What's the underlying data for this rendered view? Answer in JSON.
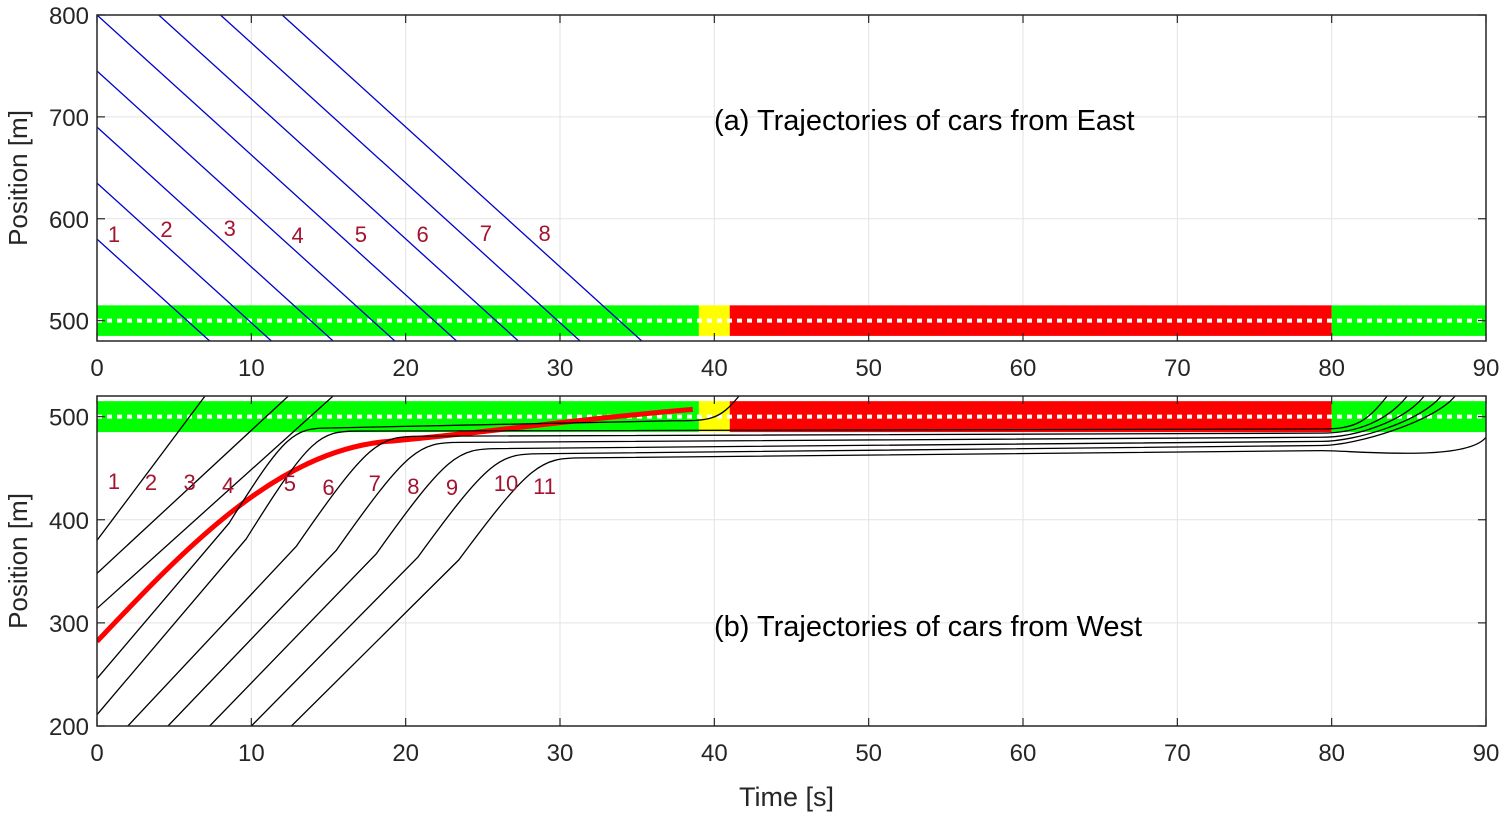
{
  "chart_data": [
    {
      "type": "line",
      "title": "(a) Trajectories of cars from East",
      "xlabel": "",
      "ylabel": "Position [m]",
      "xlim": [
        0,
        90
      ],
      "ylim": [
        480,
        800
      ],
      "xticks": [
        0,
        10,
        20,
        30,
        40,
        50,
        60,
        70,
        80,
        90
      ],
      "yticks": [
        500,
        600,
        700,
        800
      ],
      "grid": true,
      "signal_phases": [
        {
          "state": "green",
          "start": 0,
          "end": 39,
          "color": "#00ff00"
        },
        {
          "state": "yellow",
          "start": 39,
          "end": 41,
          "color": "#ffff00"
        },
        {
          "state": "red",
          "start": 41,
          "end": 80,
          "color": "#ff0000"
        },
        {
          "state": "green",
          "start": 80,
          "end": 90,
          "color": "#00ff00"
        }
      ],
      "signal_band": {
        "y_low": 485,
        "y_high": 515,
        "stop_line": 500
      },
      "line_color": "#0000cc",
      "series": [
        {
          "name": "trajectory-1",
          "x": [
            0,
            7.3
          ],
          "y": [
            580,
            480
          ]
        },
        {
          "name": "trajectory-2",
          "x": [
            0,
            11.3
          ],
          "y": [
            635,
            480
          ]
        },
        {
          "name": "trajectory-3",
          "x": [
            0,
            15.3
          ],
          "y": [
            690,
            480
          ]
        },
        {
          "name": "trajectory-4",
          "x": [
            0,
            19.3
          ],
          "y": [
            745,
            480
          ]
        },
        {
          "name": "trajectory-5",
          "x": [
            0,
            23.3
          ],
          "y": [
            800,
            480
          ]
        },
        {
          "name": "trajectory-6",
          "x": [
            4,
            27.3
          ],
          "y": [
            800,
            480
          ]
        },
        {
          "name": "trajectory-7",
          "x": [
            8,
            31.3
          ],
          "y": [
            800,
            480
          ]
        },
        {
          "name": "trajectory-8",
          "x": [
            12,
            35.3
          ],
          "y": [
            800,
            480
          ]
        }
      ],
      "annotations": [
        {
          "text": "1",
          "x": 1.1,
          "y": 577
        },
        {
          "text": "2",
          "x": 4.5,
          "y": 582
        },
        {
          "text": "3",
          "x": 8.6,
          "y": 583
        },
        {
          "text": "4",
          "x": 13.0,
          "y": 576
        },
        {
          "text": "5",
          "x": 17.1,
          "y": 577
        },
        {
          "text": "6",
          "x": 21.1,
          "y": 577
        },
        {
          "text": "7",
          "x": 25.2,
          "y": 578
        },
        {
          "text": "8",
          "x": 29.0,
          "y": 578
        }
      ]
    },
    {
      "type": "line",
      "title": "(b) Trajectories of cars from West",
      "xlabel": "Time [s]",
      "ylabel": "Position [m]",
      "xlim": [
        0,
        90
      ],
      "ylim": [
        200,
        520
      ],
      "xticks": [
        0,
        10,
        20,
        30,
        40,
        50,
        60,
        70,
        80,
        90
      ],
      "yticks": [
        200,
        300,
        400,
        500
      ],
      "grid": true,
      "signal_phases": [
        {
          "state": "green",
          "start": 0,
          "end": 39,
          "color": "#00ff00"
        },
        {
          "state": "yellow",
          "start": 39,
          "end": 41,
          "color": "#ffff00"
        },
        {
          "state": "red",
          "start": 41,
          "end": 80,
          "color": "#ff0000"
        },
        {
          "state": "green",
          "start": 80,
          "end": 90,
          "color": "#00ff00"
        }
      ],
      "signal_band": {
        "y_low": 485,
        "y_high": 515,
        "stop_line": 500
      },
      "line_color": "#000000",
      "series": [
        {
          "name": "trajectory-1",
          "x": [
            0,
            7.0
          ],
          "y": [
            380,
            520
          ]
        },
        {
          "name": "trajectory-2",
          "x": [
            0,
            12.4
          ],
          "y": [
            348,
            520
          ]
        },
        {
          "name": "trajectory-3",
          "x": [
            0,
            15.3
          ],
          "y": [
            314,
            520
          ]
        },
        {
          "name": "trajectory-4",
          "x": [
            0,
            38.6
          ],
          "y": [
            282,
            507
          ],
          "highlight": true,
          "color": "#ff0000"
        },
        {
          "name": "trajectory-5",
          "x": [
            0,
            13.8,
            38.0,
            41.6
          ],
          "y": [
            246,
            489,
            496,
            520
          ]
        },
        {
          "name": "trajectory-6",
          "x": [
            0,
            15.6,
            80.0,
            83.6
          ],
          "y": [
            211,
            486,
            488,
            520
          ]
        },
        {
          "name": "trajectory-7",
          "x": [
            2.0,
            19.6,
            80.0,
            84.9
          ],
          "y": [
            200,
            481,
            484,
            520
          ]
        },
        {
          "name": "trajectory-8",
          "x": [
            4.6,
            22.2,
            80.0,
            86.0
          ],
          "y": [
            200,
            475,
            480,
            520
          ]
        },
        {
          "name": "trajectory-9",
          "x": [
            7.3,
            24.7,
            80.0,
            87.1
          ],
          "y": [
            200,
            469,
            476,
            520
          ]
        },
        {
          "name": "trajectory-10",
          "x": [
            10.0,
            27.4,
            80.0,
            88.0
          ],
          "y": [
            200,
            464,
            472,
            520
          ]
        },
        {
          "name": "trajectory-11",
          "x": [
            12.6,
            30.1,
            80.0,
            90.0
          ],
          "y": [
            200,
            460,
            467,
            480
          ]
        }
      ],
      "annotations": [
        {
          "text": "1",
          "x": 1.1,
          "y": 430
        },
        {
          "text": "2",
          "x": 3.5,
          "y": 429
        },
        {
          "text": "3",
          "x": 6.0,
          "y": 429
        },
        {
          "text": "4",
          "x": 8.5,
          "y": 426
        },
        {
          "text": "5",
          "x": 12.5,
          "y": 428
        },
        {
          "text": "6",
          "x": 15.0,
          "y": 424
        },
        {
          "text": "7",
          "x": 18.0,
          "y": 428
        },
        {
          "text": "8",
          "x": 20.5,
          "y": 425
        },
        {
          "text": "9",
          "x": 23.0,
          "y": 424
        },
        {
          "text": "10",
          "x": 26.5,
          "y": 428
        },
        {
          "text": "11",
          "x": 29.0,
          "y": 425
        }
      ]
    }
  ]
}
